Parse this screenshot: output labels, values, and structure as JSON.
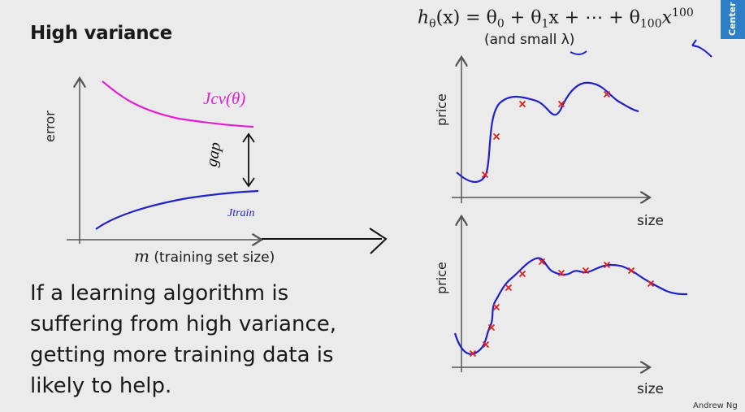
{
  "slide": {
    "title": "High variance",
    "formula": {
      "lhs": "h",
      "lhs_sub": "θ",
      "lhs_arg": "(x) = θ",
      "t0_sub": "0",
      "plus1": " + θ",
      "t1_sub": "1",
      "mid": "x + ⋯ + θ",
      "t100_sub": "100",
      "tail": "x",
      "power": "100"
    },
    "regularization_note": "(and small λ)",
    "side_tab": "Center",
    "statement": "If a learning algorithm is suffering from high variance, getting more training data is likely to help.",
    "author": "Andrew Ng"
  },
  "learning_curve": {
    "y_label": "error",
    "x_symbol": "m",
    "x_label": "(training set size)",
    "cv_label": "Jcv(θ)",
    "train_label": "Jtrain",
    "gap_label": "gap",
    "colors": {
      "cv": "#e020d0",
      "train": "#2020c8"
    }
  },
  "fit_plots": {
    "top": {
      "y_label": "price",
      "x_label": "size"
    },
    "bottom": {
      "y_label": "price",
      "x_label": "size"
    },
    "colors": {
      "curve": "#2020c8",
      "points": "#e02020"
    }
  }
}
